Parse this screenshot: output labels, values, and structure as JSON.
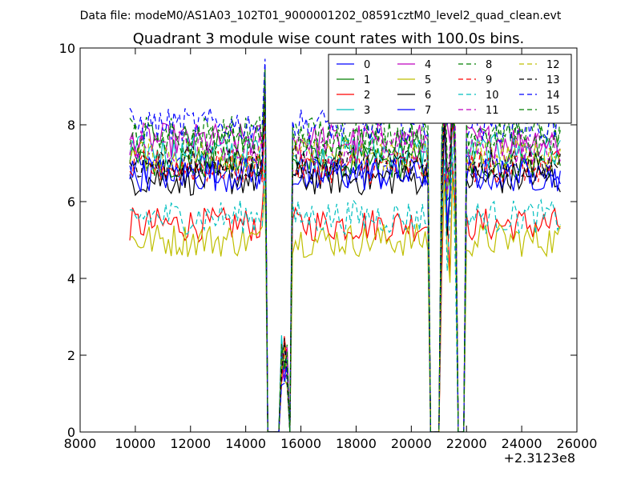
{
  "figure": {
    "suptitle": "Data file: modeM0/AS1A03_102T01_9000001202_08591cztM0_level2_quad_clean.evt",
    "x_offset_label": "+2.3123e8"
  },
  "chart_data": {
    "type": "line",
    "title": "Quadrant 3 module wise count rates with 100.0s bins.",
    "xlabel": "",
    "ylabel": "",
    "xlim": [
      8000,
      26000
    ],
    "ylim": [
      0,
      10
    ],
    "x_ticks": [
      8000,
      10000,
      12000,
      14000,
      16000,
      18000,
      20000,
      22000,
      24000,
      26000
    ],
    "y_ticks": [
      0,
      2,
      4,
      6,
      8,
      10
    ],
    "x_tick_labels": [
      "8000",
      "10000",
      "12000",
      "14000",
      "16000",
      "18000",
      "20000",
      "22000",
      "24000",
      "26000"
    ],
    "y_tick_labels": [
      "0",
      "2",
      "4",
      "6",
      "8",
      "10"
    ],
    "grid": false,
    "legend_position": "top-right",
    "legend_columns": 4,
    "x_start": 9800,
    "x_end": 25400,
    "bin": 100,
    "segments": [
      {
        "start": 9800,
        "end": 14700
      },
      {
        "start": 15300,
        "end": 15500
      },
      {
        "start": 15700,
        "end": 20600
      },
      {
        "start": 21100,
        "end": 21600
      },
      {
        "start": 22000,
        "end": 25400
      }
    ],
    "series": [
      {
        "name": "0",
        "color": "#0000ff",
        "dash": "solid",
        "level": 6.8
      },
      {
        "name": "1",
        "color": "#007f00",
        "dash": "solid",
        "level": 7.0
      },
      {
        "name": "2",
        "color": "#ff0000",
        "dash": "solid",
        "level": 5.4
      },
      {
        "name": "3",
        "color": "#00bfbf",
        "dash": "solid",
        "level": 7.3
      },
      {
        "name": "4",
        "color": "#bf00bf",
        "dash": "solid",
        "level": 7.6
      },
      {
        "name": "5",
        "color": "#bfbf00",
        "dash": "solid",
        "level": 5.0
      },
      {
        "name": "6",
        "color": "#000000",
        "dash": "solid",
        "level": 6.6
      },
      {
        "name": "7",
        "color": "#0000ff",
        "dash": "solid",
        "level": 6.7
      },
      {
        "name": "8",
        "color": "#007f00",
        "dash": "dashed",
        "level": 7.8
      },
      {
        "name": "9",
        "color": "#ff0000",
        "dash": "dashed",
        "level": 6.9
      },
      {
        "name": "10",
        "color": "#00bfbf",
        "dash": "dashed",
        "level": 5.6
      },
      {
        "name": "11",
        "color": "#bf00bf",
        "dash": "dashed",
        "level": 7.4
      },
      {
        "name": "12",
        "color": "#bfbf00",
        "dash": "dashed",
        "level": 7.2
      },
      {
        "name": "13",
        "color": "#000000",
        "dash": "dashed",
        "level": 7.0
      },
      {
        "name": "14",
        "color": "#0000ff",
        "dash": "dashed",
        "level": 8.0
      },
      {
        "name": "15",
        "color": "#007f00",
        "dash": "dashed",
        "level": 7.6
      }
    ]
  }
}
